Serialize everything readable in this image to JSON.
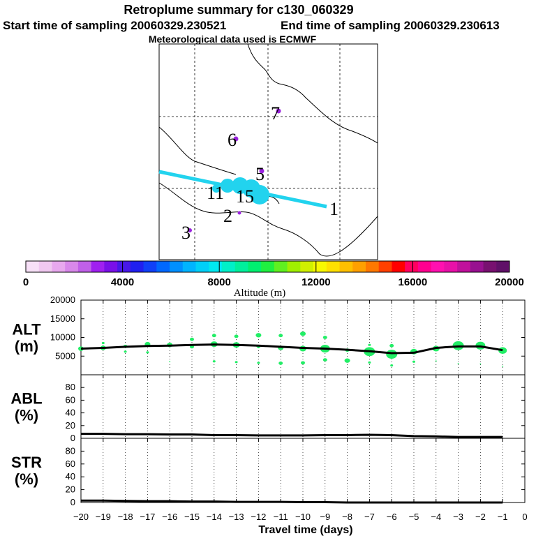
{
  "title": "Retroplume summary for c130_060329",
  "start_label": "Start time of sampling 20060329.230521",
  "end_label": "End time of sampling 20060329.230613",
  "met_label": "Meteorological data used is ECMWF",
  "colors": {
    "track": "#22d3ee",
    "line": "#000000",
    "dots": "#22ee66",
    "dot_purple": "#9922dd",
    "colorbar": [
      "#f7e0f7",
      "#f0c8f0",
      "#e8a8ee",
      "#d888ea",
      "#c060e8",
      "#a020f0",
      "#7a10e8",
      "#4818e8",
      "#2020f0",
      "#1040f8",
      "#0068ff",
      "#0090ff",
      "#00b4ff",
      "#00d0f8",
      "#00e8f0",
      "#00f0c8",
      "#00f09c",
      "#00f070",
      "#20f040",
      "#60f020",
      "#a0f000",
      "#d0f000",
      "#f8f800",
      "#ffe000",
      "#ffc000",
      "#ffa000",
      "#ff7800",
      "#ff4000",
      "#ff0000",
      "#ff0060",
      "#ff0090",
      "#ff10b0",
      "#e810a8",
      "#c0109c",
      "#981090",
      "#781070",
      "#601068"
    ]
  },
  "chart_data": [
    {
      "type": "map",
      "name": "retroplume-map",
      "cluster_labels": [
        {
          "label": "1",
          "color": "#000000"
        },
        {
          "label": "2",
          "color": "#000000"
        },
        {
          "label": "3",
          "color": "#000000"
        },
        {
          "label": "5",
          "color": "#000000"
        },
        {
          "label": "6",
          "color": "#000000"
        },
        {
          "label": "7",
          "color": "#000000"
        },
        {
          "label": "11",
          "color": "#000000"
        },
        {
          "label": "15",
          "color": "#000000"
        }
      ],
      "colorbar": {
        "label": "Altitude  (m)",
        "min": 0,
        "max": 20000,
        "ticks": [
          0,
          4000,
          8000,
          12000,
          16000,
          20000
        ],
        "tick_labels": [
          "0",
          "4000",
          "8000",
          "12000",
          "16000",
          "20000"
        ]
      }
    },
    {
      "type": "scatter",
      "name": "altitude-panel",
      "ylabel": "ALT\n(m)",
      "ylabel_lines": [
        "ALT",
        "(m)"
      ],
      "ylim": [
        0,
        20000
      ],
      "yticks": [
        5000,
        10000,
        15000,
        20000
      ],
      "ytick_labels": [
        "5000",
        "10000",
        "15000",
        "20000"
      ],
      "xlim": [
        -20,
        0
      ],
      "mean_line": {
        "x": [
          -20,
          -19,
          -18,
          -17,
          -16,
          -15,
          -14,
          -13,
          -12,
          -11,
          -10,
          -9,
          -8,
          -7,
          -6,
          -5,
          -4,
          -3,
          -2,
          -1
        ],
        "y": [
          7000,
          7200,
          7500,
          7700,
          7800,
          8000,
          8100,
          8000,
          7800,
          7500,
          7200,
          7000,
          6700,
          6300,
          5800,
          5900,
          7200,
          7600,
          7600,
          6600
        ]
      },
      "dots": [
        {
          "x": -20,
          "y": 7000,
          "s": 4
        },
        {
          "x": -19,
          "y": 7200,
          "s": 4
        },
        {
          "x": -19,
          "y": 8500,
          "s": 2
        },
        {
          "x": -18,
          "y": 7600,
          "s": 3
        },
        {
          "x": -18,
          "y": 6200,
          "s": 2
        },
        {
          "x": -17,
          "y": 8200,
          "s": 4
        },
        {
          "x": -17,
          "y": 6000,
          "s": 2
        },
        {
          "x": -16,
          "y": 8000,
          "s": 4
        },
        {
          "x": -16,
          "y": 3500,
          "s": 1
        },
        {
          "x": -15,
          "y": 9500,
          "s": 3
        },
        {
          "x": -15,
          "y": 7500,
          "s": 3
        },
        {
          "x": -14,
          "y": 10500,
          "s": 3
        },
        {
          "x": -14,
          "y": 8200,
          "s": 5
        },
        {
          "x": -14,
          "y": 3600,
          "s": 2
        },
        {
          "x": -13,
          "y": 10300,
          "s": 3
        },
        {
          "x": -13,
          "y": 8000,
          "s": 5
        },
        {
          "x": -13,
          "y": 3400,
          "s": 2
        },
        {
          "x": -12,
          "y": 10600,
          "s": 4
        },
        {
          "x": -12,
          "y": 7600,
          "s": 3
        },
        {
          "x": -12,
          "y": 3200,
          "s": 2
        },
        {
          "x": -11,
          "y": 10500,
          "s": 3
        },
        {
          "x": -11,
          "y": 7200,
          "s": 4
        },
        {
          "x": -11,
          "y": 3100,
          "s": 3
        },
        {
          "x": -10,
          "y": 11000,
          "s": 4
        },
        {
          "x": -10,
          "y": 7000,
          "s": 5
        },
        {
          "x": -10,
          "y": 3200,
          "s": 3
        },
        {
          "x": -9,
          "y": 10000,
          "s": 3
        },
        {
          "x": -9,
          "y": 7000,
          "s": 7
        },
        {
          "x": -9,
          "y": 4000,
          "s": 3
        },
        {
          "x": -8,
          "y": 6600,
          "s": 3
        },
        {
          "x": -8,
          "y": 3800,
          "s": 4
        },
        {
          "x": -7,
          "y": 8000,
          "s": 2
        },
        {
          "x": -7,
          "y": 6200,
          "s": 8
        },
        {
          "x": -7,
          "y": 3300,
          "s": 2
        },
        {
          "x": -6,
          "y": 7800,
          "s": 3
        },
        {
          "x": -6,
          "y": 5500,
          "s": 8
        },
        {
          "x": -6,
          "y": 2500,
          "s": 2
        },
        {
          "x": -5,
          "y": 6200,
          "s": 5
        },
        {
          "x": -5,
          "y": 3500,
          "s": 2
        },
        {
          "x": -4,
          "y": 7000,
          "s": 5
        },
        {
          "x": -4,
          "y": 3700,
          "s": 1
        },
        {
          "x": -3,
          "y": 7800,
          "s": 8
        },
        {
          "x": -3,
          "y": 3000,
          "s": 1
        },
        {
          "x": -2,
          "y": 7800,
          "s": 7
        },
        {
          "x": -2,
          "y": 2900,
          "s": 1
        },
        {
          "x": -1,
          "y": 6500,
          "s": 6
        },
        {
          "x": -1,
          "y": 2300,
          "s": 1
        }
      ]
    },
    {
      "type": "line",
      "name": "abl-panel",
      "ylabel_lines": [
        "ABL",
        "(%)"
      ],
      "ylim": [
        0,
        100
      ],
      "yticks": [
        0,
        20,
        40,
        60,
        80
      ],
      "ytick_labels": [
        "0",
        "20",
        "40",
        "60",
        "80"
      ],
      "xlim": [
        -20,
        0
      ],
      "x": [
        -20,
        -19,
        -18,
        -17,
        -16,
        -15,
        -14,
        -13,
        -12,
        -11,
        -10,
        -9,
        -8,
        -7,
        -6,
        -5,
        -4,
        -3,
        -2,
        -1
      ],
      "y": [
        7,
        7,
        6.5,
        6.5,
        6,
        6,
        5,
        5,
        4.5,
        4.5,
        4.5,
        5,
        5,
        5.5,
        5,
        3.5,
        3,
        2,
        2,
        2
      ]
    },
    {
      "type": "line",
      "name": "str-panel",
      "ylabel_lines": [
        "STR",
        "(%)"
      ],
      "ylim": [
        0,
        100
      ],
      "yticks": [
        0,
        20,
        40,
        60,
        80
      ],
      "ytick_labels": [
        "0",
        "20",
        "40",
        "60",
        "80"
      ],
      "xlim": [
        -20,
        0
      ],
      "x": [
        -20,
        -19,
        -18,
        -17,
        -16,
        -15,
        -14,
        -13,
        -12,
        -11,
        -10,
        -9,
        -8,
        -7,
        -6,
        -5,
        -4,
        -3,
        -2,
        -1
      ],
      "y": [
        3,
        3,
        2.5,
        2,
        2,
        1.5,
        1.5,
        1,
        1,
        1,
        0.5,
        0.5,
        0,
        0,
        0,
        0,
        0,
        0,
        0,
        0
      ],
      "xlabel": "Travel time (days)",
      "xticks": [
        -20,
        -19,
        -18,
        -17,
        -16,
        -15,
        -14,
        -13,
        -12,
        -11,
        -10,
        -9,
        -8,
        -7,
        -6,
        -5,
        -4,
        -3,
        -2,
        -1,
        0
      ],
      "xtick_labels": [
        "−20",
        "−19",
        "−18",
        "−17",
        "−16",
        "−15",
        "−14",
        "−13",
        "−12",
        "−11",
        "−10",
        "−9",
        "−8",
        "−7",
        "−6",
        "−5",
        "−4",
        "−3",
        "−2",
        "−1",
        "0"
      ]
    }
  ]
}
